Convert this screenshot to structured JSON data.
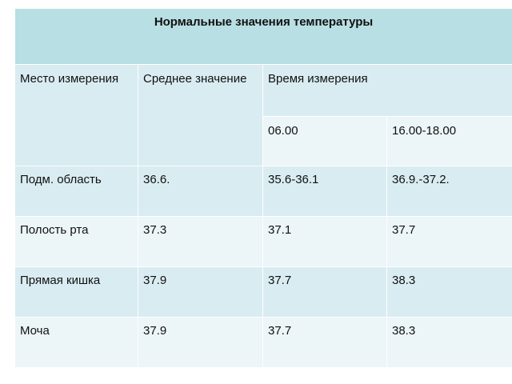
{
  "table": {
    "title": "Нормальные значения температуры",
    "header": [
      "Место измерения",
      "Среднее значение",
      "Время измерения"
    ],
    "subheader": [
      "06.00",
      "16.00-18.00"
    ],
    "rows": [
      [
        "Подм. область",
        "36.6.",
        "35.6-36.1",
        "36.9.-37.2."
      ],
      [
        "Полость рта",
        "37.3",
        "37.1",
        "37.7"
      ],
      [
        "Прямая кишка",
        "37.9",
        "37.7",
        "38.3"
      ],
      [
        "Моча",
        "37.9",
        "37.7",
        "38.3"
      ]
    ]
  }
}
